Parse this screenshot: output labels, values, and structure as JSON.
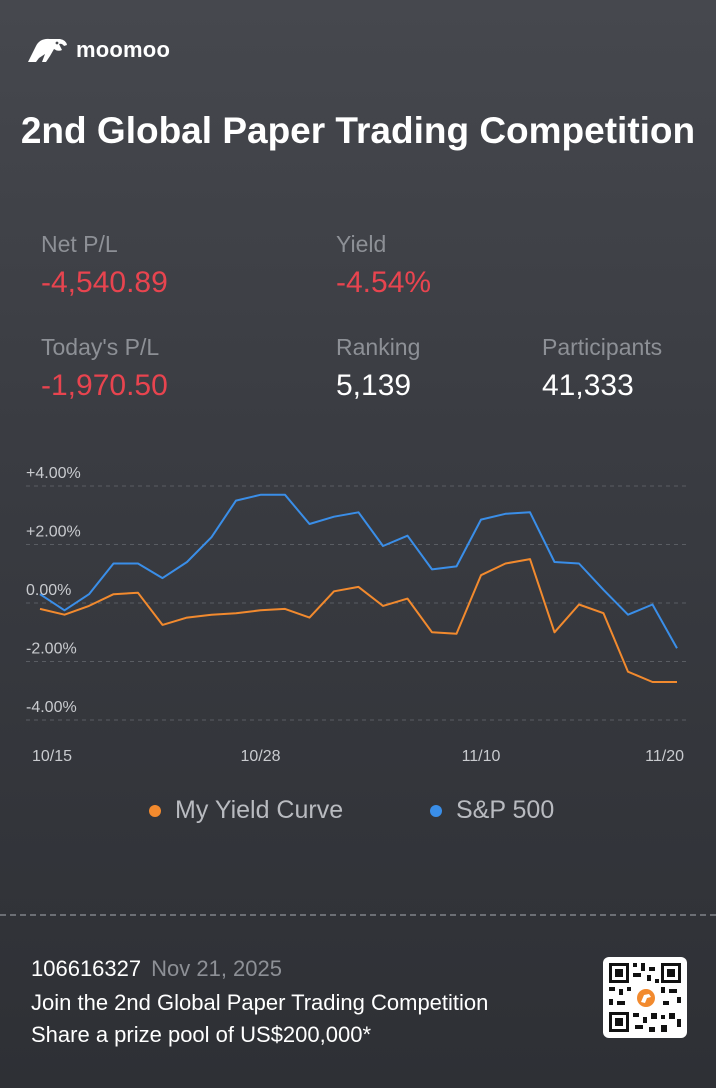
{
  "brand": {
    "name": "moomoo",
    "logo_icon": "moomoo-bull-icon"
  },
  "title": "2nd Global Paper Trading Competition",
  "stats": {
    "net_pl": {
      "label": "Net P/L",
      "value": "-4,540.89"
    },
    "yield": {
      "label": "Yield",
      "value": "-4.54%"
    },
    "todays_pl": {
      "label": "Today's P/L",
      "value": "-1,970.50"
    },
    "ranking": {
      "label": "Ranking",
      "value": "5,139"
    },
    "participants": {
      "label": "Participants",
      "value": "41,333"
    }
  },
  "colors": {
    "negative": "#e8444f",
    "my_curve": "#f28a2e",
    "sp500": "#3a8ee8"
  },
  "chart_data": {
    "type": "line",
    "x": [
      "10/15",
      "10/16",
      "10/17",
      "10/20",
      "10/21",
      "10/22",
      "10/23",
      "10/24",
      "10/27",
      "10/28",
      "10/29",
      "10/30",
      "10/31",
      "11/03",
      "11/04",
      "11/05",
      "11/06",
      "11/07",
      "11/10",
      "11/11",
      "11/12",
      "11/13",
      "11/14",
      "11/17",
      "11/18",
      "11/19",
      "11/20"
    ],
    "x_tick_labels": [
      "10/15",
      "10/28",
      "11/10",
      "11/20"
    ],
    "y_tick_labels": [
      "+4.00%",
      "+2.00%",
      "0.00%",
      "-2.00%",
      "-4.00%"
    ],
    "ylim": [
      -4,
      4
    ],
    "series": [
      {
        "name": "My Yield Curve",
        "color": "#f28a2e",
        "values": [
          -0.2,
          -0.4,
          -0.1,
          0.3,
          0.35,
          -0.75,
          -0.5,
          -0.4,
          -0.35,
          -0.25,
          -0.2,
          -0.5,
          0.4,
          0.55,
          -0.1,
          0.15,
          -1.0,
          -1.05,
          0.95,
          1.35,
          1.5,
          -1.0,
          -0.05,
          -0.35,
          -2.35,
          -2.7,
          -2.7
        ]
      },
      {
        "name": "S&P 500",
        "color": "#3a8ee8",
        "values": [
          0.3,
          -0.25,
          0.3,
          1.35,
          1.35,
          0.85,
          1.4,
          2.25,
          3.5,
          3.7,
          3.7,
          2.7,
          2.95,
          3.1,
          1.95,
          2.3,
          1.15,
          1.25,
          2.85,
          3.05,
          3.1,
          1.4,
          1.35,
          0.45,
          -0.4,
          -0.05,
          -1.55
        ]
      }
    ],
    "grid": true,
    "legend": "bottom"
  },
  "footer": {
    "user_id": "106616327",
    "date": "Nov 21, 2025",
    "line1": "Join the 2nd Global Paper Trading Competition",
    "line2": "Share a prize pool of US$200,000*"
  },
  "qr": {
    "icon": "qr-code-icon"
  }
}
